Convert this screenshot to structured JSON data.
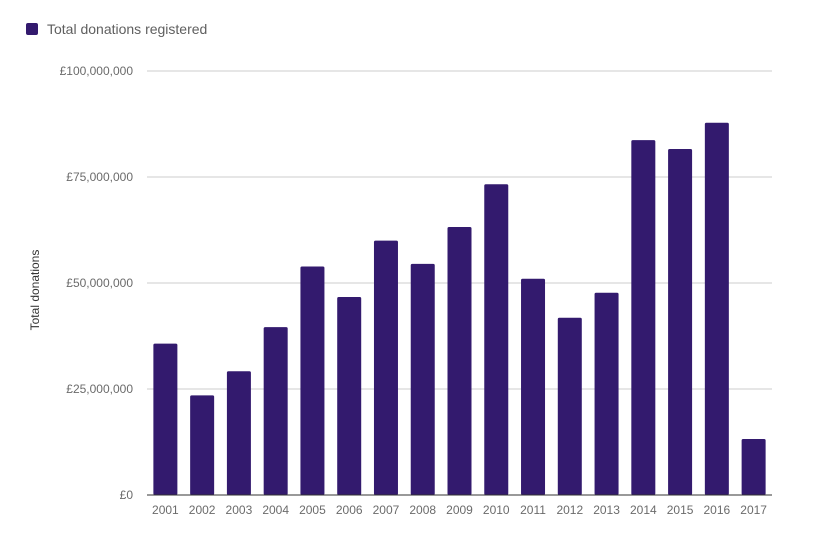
{
  "chart_data": {
    "type": "bar",
    "title": "",
    "xlabel": "",
    "ylabel": "Total donations",
    "legend": {
      "label": "Total donations registered",
      "position": "top-left"
    },
    "ylim": [
      0,
      100000000
    ],
    "yticks": [
      {
        "value": 0,
        "label": "£0"
      },
      {
        "value": 25000000,
        "label": "£25,000,000"
      },
      {
        "value": 50000000,
        "label": "£50,000,000"
      },
      {
        "value": 75000000,
        "label": "£75,000,000"
      },
      {
        "value": 100000000,
        "label": "£100,000,000"
      }
    ],
    "grid": true,
    "categories": [
      "2001",
      "2002",
      "2003",
      "2004",
      "2005",
      "2006",
      "2007",
      "2008",
      "2009",
      "2010",
      "2011",
      "2012",
      "2013",
      "2014",
      "2015",
      "2016",
      "2017"
    ],
    "series": [
      {
        "name": "Total donations registered",
        "color": "#331a6e",
        "values": [
          35700000,
          23500000,
          29200000,
          39600000,
          53900000,
          46700000,
          60000000,
          54500000,
          63200000,
          73300000,
          51000000,
          41800000,
          47700000,
          83700000,
          81600000,
          87800000,
          13200000
        ]
      }
    ]
  }
}
